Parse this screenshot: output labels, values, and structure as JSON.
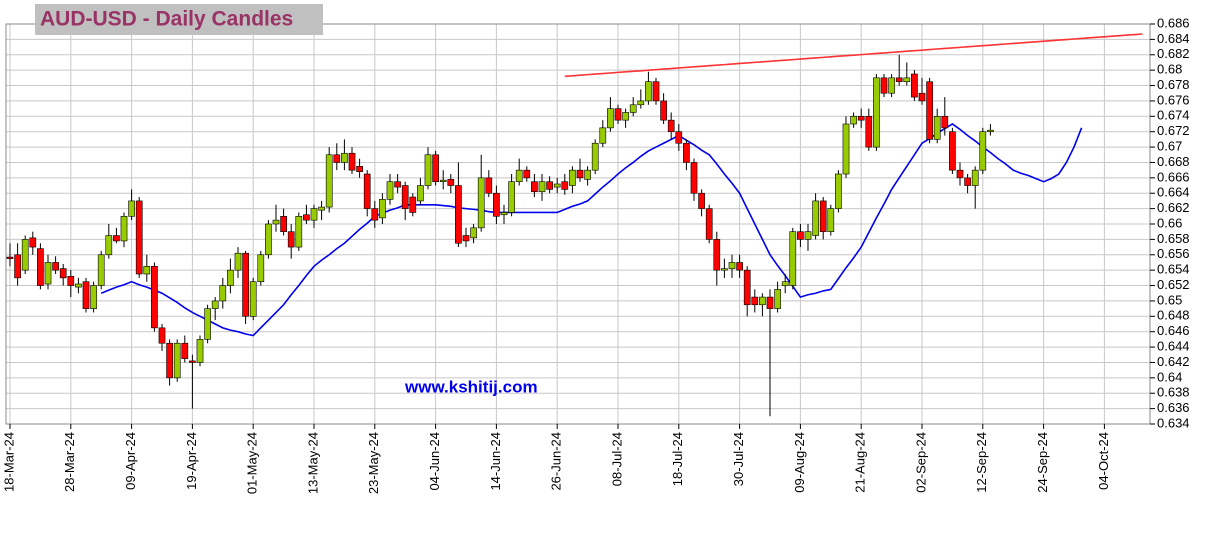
{
  "chart_data": {
    "type": "candlestick",
    "title": "AUD-USD - Daily Candles",
    "watermark": "www.kshitij.com",
    "up_color": "#99cc00",
    "down_color": "#ff0000",
    "grid": true,
    "ylim": [
      0.634,
      0.686
    ],
    "yticks": [
      0.634,
      0.636,
      0.638,
      0.64,
      0.642,
      0.644,
      0.646,
      0.648,
      0.65,
      0.652,
      0.654,
      0.656,
      0.658,
      0.66,
      0.662,
      0.664,
      0.666,
      0.668,
      0.67,
      0.672,
      0.674,
      0.676,
      0.678,
      0.68,
      0.682,
      0.684,
      0.686
    ],
    "categories": [
      "18-Mar-24",
      null,
      null,
      null,
      null,
      null,
      null,
      null,
      "28-Mar-24",
      null,
      null,
      null,
      null,
      null,
      null,
      null,
      "09-Apr-24",
      null,
      null,
      null,
      null,
      null,
      null,
      null,
      "19-Apr-24",
      null,
      null,
      null,
      null,
      null,
      null,
      null,
      "01-May-24",
      null,
      null,
      null,
      null,
      null,
      null,
      null,
      "13-May-24",
      null,
      null,
      null,
      null,
      null,
      null,
      null,
      "23-May-24",
      null,
      null,
      null,
      null,
      null,
      null,
      null,
      "04-Jun-24",
      null,
      null,
      null,
      null,
      null,
      null,
      null,
      "14-Jun-24",
      null,
      null,
      null,
      null,
      null,
      null,
      null,
      "26-Jun-24",
      null,
      null,
      null,
      null,
      null,
      null,
      null,
      "08-Jul-24",
      null,
      null,
      null,
      null,
      null,
      null,
      null,
      "18-Jul-24",
      null,
      null,
      null,
      null,
      null,
      null,
      null,
      "30-Jul-24",
      null,
      null,
      null,
      null,
      null,
      null,
      null,
      "09-Aug-24",
      null,
      null,
      null,
      null,
      null,
      null,
      null,
      "21-Aug-24",
      null,
      null,
      null,
      null,
      null,
      null,
      null,
      "02-Sep-24",
      null,
      null,
      null,
      null,
      null,
      null,
      null,
      "12-Sep-24",
      null,
      null,
      null,
      null,
      null,
      null,
      null,
      "24-Sep-24",
      null,
      null,
      null,
      null,
      null,
      null,
      null,
      "04-Oct-24",
      null,
      null,
      null,
      null,
      null
    ],
    "open": [
      0.6557,
      0.656,
      0.654,
      0.6582,
      0.6568,
      0.6522,
      0.655,
      0.6542,
      0.6532,
      0.6518,
      0.6525,
      0.649,
      0.652,
      0.656,
      0.6585,
      0.6578,
      0.661,
      0.663,
      0.6535,
      0.6545,
      0.6465,
      0.6445,
      0.64,
      0.6445,
      0.6422,
      0.642,
      0.645,
      0.649,
      0.65,
      0.652,
      0.654,
      0.6562,
      0.648,
      0.6525,
      0.656,
      0.66,
      0.661,
      0.659,
      0.657,
      0.6612,
      0.6605,
      0.6618,
      0.6622,
      0.669,
      0.668,
      0.6692,
      0.6675,
      0.6665,
      0.662,
      0.6608,
      0.6632,
      0.6655,
      0.665,
      0.6635,
      0.663,
      0.665,
      0.669,
      0.6655,
      0.6658,
      0.665,
      0.6585,
      0.6582,
      0.6595,
      0.666,
      0.664,
      0.6612,
      0.6615,
      0.6655,
      0.667,
      0.6655,
      0.6642,
      0.6655,
      0.6648,
      0.6655,
      0.665,
      0.667,
      0.6658,
      0.667,
      0.6705,
      0.6725,
      0.675,
      0.6735,
      0.6745,
      0.6755,
      0.676,
      0.6785,
      0.676,
      0.6735,
      0.672,
      0.6705,
      0.668,
      0.664,
      0.662,
      0.658,
      0.654,
      0.6542,
      0.655,
      0.654,
      0.6505,
      0.6495,
      0.6505,
      0.649,
      0.652,
      0.652,
      0.659,
      0.658,
      0.6585,
      0.663,
      0.659,
      0.662,
      0.6665,
      0.673,
      0.674,
      0.674,
      0.67,
      0.679,
      0.677,
      0.679,
      0.6785,
      0.6795,
      0.677,
      0.6785,
      0.671,
      0.674,
      0.672,
      0.667,
      0.666,
      0.665,
      0.667,
      0.672,
      null,
      null,
      null,
      null,
      null,
      null,
      null,
      null,
      null,
      null,
      null,
      null,
      null,
      null,
      null,
      null,
      null,
      null,
      null,
      null
    ],
    "high": [
      0.6575,
      0.6575,
      0.6585,
      0.659,
      0.6575,
      0.656,
      0.6558,
      0.6548,
      0.654,
      0.653,
      0.653,
      0.6525,
      0.6565,
      0.66,
      0.6595,
      0.6615,
      0.6645,
      0.6635,
      0.656,
      0.655,
      0.647,
      0.645,
      0.645,
      0.6455,
      0.643,
      0.6455,
      0.6495,
      0.6505,
      0.653,
      0.6555,
      0.657,
      0.6565,
      0.653,
      0.6565,
      0.6605,
      0.6625,
      0.662,
      0.66,
      0.6615,
      0.6625,
      0.6625,
      0.663,
      0.67,
      0.6705,
      0.671,
      0.67,
      0.6685,
      0.667,
      0.663,
      0.664,
      0.6665,
      0.6665,
      0.6655,
      0.664,
      0.666,
      0.67,
      0.6695,
      0.667,
      0.6665,
      0.668,
      0.6595,
      0.66,
      0.669,
      0.667,
      0.665,
      0.6625,
      0.6665,
      0.6685,
      0.6675,
      0.6665,
      0.6665,
      0.6662,
      0.666,
      0.6665,
      0.6675,
      0.6685,
      0.6675,
      0.671,
      0.6735,
      0.6765,
      0.6755,
      0.675,
      0.6765,
      0.6775,
      0.6798,
      0.679,
      0.677,
      0.6745,
      0.673,
      0.671,
      0.6685,
      0.6645,
      0.6625,
      0.659,
      0.6555,
      0.656,
      0.656,
      0.6545,
      0.6515,
      0.651,
      0.6515,
      0.6525,
      0.6535,
      0.6595,
      0.66,
      0.66,
      0.664,
      0.6635,
      0.6625,
      0.667,
      0.674,
      0.6745,
      0.675,
      0.675,
      0.6795,
      0.6795,
      0.6795,
      0.682,
      0.681,
      0.68,
      0.679,
      0.679,
      0.675,
      0.6765,
      0.6725,
      0.668,
      0.6665,
      0.6675,
      0.6725,
      0.673,
      null,
      null,
      null,
      null,
      null,
      null,
      null,
      null,
      null,
      null,
      null,
      null,
      null,
      null,
      null,
      null,
      null,
      null,
      null,
      null
    ],
    "low": [
      0.6545,
      0.652,
      0.6535,
      0.656,
      0.6515,
      0.6515,
      0.6535,
      0.652,
      0.6505,
      0.651,
      0.6485,
      0.6485,
      0.6515,
      0.6555,
      0.6575,
      0.657,
      0.6605,
      0.653,
      0.6525,
      0.646,
      0.6435,
      0.639,
      0.6395,
      0.642,
      0.636,
      0.6415,
      0.6445,
      0.6475,
      0.649,
      0.651,
      0.653,
      0.647,
      0.6475,
      0.652,
      0.6555,
      0.659,
      0.6585,
      0.6555,
      0.6565,
      0.66,
      0.6595,
      0.6605,
      0.6615,
      0.667,
      0.667,
      0.6665,
      0.666,
      0.661,
      0.6595,
      0.66,
      0.6625,
      0.664,
      0.6605,
      0.661,
      0.6625,
      0.6645,
      0.665,
      0.6645,
      0.664,
      0.657,
      0.657,
      0.6575,
      0.659,
      0.6635,
      0.66,
      0.66,
      0.661,
      0.665,
      0.6655,
      0.6635,
      0.663,
      0.664,
      0.664,
      0.6638,
      0.664,
      0.6655,
      0.665,
      0.6665,
      0.67,
      0.672,
      0.673,
      0.6725,
      0.674,
      0.675,
      0.6755,
      0.6755,
      0.673,
      0.671,
      0.6695,
      0.667,
      0.663,
      0.661,
      0.6575,
      0.652,
      0.653,
      0.653,
      0.653,
      0.648,
      0.6485,
      0.648,
      0.635,
      0.6485,
      0.651,
      0.6515,
      0.657,
      0.6565,
      0.658,
      0.658,
      0.6585,
      0.6615,
      0.666,
      0.6725,
      0.6725,
      0.6695,
      0.6695,
      0.6765,
      0.6765,
      0.678,
      0.678,
      0.676,
      0.6755,
      0.6705,
      0.6705,
      0.6715,
      0.6665,
      0.665,
      0.664,
      0.662,
      0.6665,
      0.6715,
      null,
      null,
      null,
      null,
      null,
      null,
      null,
      null,
      null,
      null,
      null,
      null,
      null,
      null,
      null,
      null,
      null,
      null,
      null,
      null
    ],
    "close": [
      0.6555,
      0.653,
      0.658,
      0.657,
      0.652,
      0.655,
      0.654,
      0.653,
      0.652,
      0.6522,
      0.649,
      0.652,
      0.656,
      0.6585,
      0.6578,
      0.661,
      0.663,
      0.6535,
      0.6545,
      0.6465,
      0.6445,
      0.64,
      0.6445,
      0.6425,
      0.642,
      0.645,
      0.649,
      0.65,
      0.652,
      0.654,
      0.6562,
      0.648,
      0.6525,
      0.656,
      0.66,
      0.6605,
      0.659,
      0.657,
      0.661,
      0.6605,
      0.662,
      0.6622,
      0.669,
      0.668,
      0.6692,
      0.667,
      0.6668,
      0.662,
      0.6605,
      0.6632,
      0.6655,
      0.6648,
      0.662,
      0.6615,
      0.665,
      0.669,
      0.6655,
      0.6657,
      0.665,
      0.6575,
      0.6578,
      0.6595,
      0.666,
      0.664,
      0.661,
      0.6615,
      0.6655,
      0.667,
      0.666,
      0.6642,
      0.6655,
      0.6645,
      0.6652,
      0.6645,
      0.667,
      0.666,
      0.667,
      0.6705,
      0.6725,
      0.675,
      0.6735,
      0.6745,
      0.6755,
      0.676,
      0.6785,
      0.676,
      0.6735,
      0.672,
      0.6705,
      0.668,
      0.664,
      0.662,
      0.658,
      0.654,
      0.6542,
      0.655,
      0.654,
      0.6495,
      0.6495,
      0.6505,
      0.649,
      0.6515,
      0.6525,
      0.659,
      0.658,
      0.659,
      0.663,
      0.659,
      0.662,
      0.6665,
      0.673,
      0.674,
      0.6735,
      0.67,
      0.679,
      0.677,
      0.679,
      0.6785,
      0.679,
      0.6765,
      0.676,
      0.671,
      0.674,
      0.6725,
      0.667,
      0.666,
      0.665,
      0.667,
      0.672,
      0.6722,
      null,
      null,
      null,
      null,
      null,
      null,
      null,
      null,
      null,
      null,
      null,
      null,
      null,
      null,
      null,
      null,
      null,
      null,
      null,
      null
    ],
    "lines": [
      {
        "color": "#0000ee",
        "values": [
          null,
          null,
          null,
          null,
          null,
          null,
          null,
          null,
          null,
          null,
          null,
          null,
          0.651,
          0.6514,
          0.6518,
          0.6521,
          0.6525,
          0.6521,
          0.6518,
          0.6514,
          0.651,
          0.6504,
          0.6498,
          0.6491,
          0.6485,
          0.648,
          0.6475,
          0.647,
          0.6465,
          0.6462,
          0.646,
          0.6457,
          0.6455,
          0.6465,
          0.6475,
          0.6485,
          0.6495,
          0.6508,
          0.652,
          0.6533,
          0.6545,
          0.6553,
          0.656,
          0.6568,
          0.6575,
          0.6584,
          0.6593,
          0.6601,
          0.661,
          0.6614,
          0.6618,
          0.6621,
          0.6625,
          0.6625,
          0.6625,
          0.6625,
          0.6625,
          0.6624,
          0.6623,
          0.6621,
          0.662,
          0.6619,
          0.6618,
          0.6616,
          0.6615,
          0.6615,
          0.6615,
          0.6615,
          0.6615,
          0.6615,
          0.6615,
          0.6615,
          0.6615,
          0.6619,
          0.6623,
          0.6626,
          0.663,
          0.6639,
          0.6648,
          0.6656,
          0.6665,
          0.6673,
          0.668,
          0.6688,
          0.6695,
          0.67,
          0.6705,
          0.671,
          0.6715,
          0.6709,
          0.6703,
          0.6696,
          0.669,
          0.6678,
          0.6665,
          0.6653,
          0.664,
          0.662,
          0.66,
          0.658,
          0.656,
          0.6546,
          0.6533,
          0.6519,
          0.6505,
          0.6508,
          0.651,
          0.6513,
          0.6515,
          0.6529,
          0.6543,
          0.6556,
          0.657,
          0.6589,
          0.6608,
          0.6626,
          0.6645,
          0.666,
          0.6675,
          0.669,
          0.6705,
          0.6711,
          0.6718,
          0.6724,
          0.673,
          0.6723,
          0.6715,
          0.6708,
          0.67,
          0.6693,
          0.6685,
          0.6678,
          0.667,
          0.6666,
          0.6663,
          0.6659,
          0.6655,
          0.6659,
          0.6665,
          0.668,
          0.67,
          0.6725,
          null,
          null,
          null,
          null,
          null,
          null,
          null,
          null
        ]
      },
      {
        "color": "#ff3333",
        "values": [
          null,
          null,
          null,
          null,
          null,
          null,
          null,
          null,
          null,
          null,
          null,
          null,
          null,
          null,
          null,
          null,
          null,
          null,
          null,
          null,
          null,
          null,
          null,
          null,
          null,
          null,
          null,
          null,
          null,
          null,
          null,
          null,
          null,
          null,
          null,
          null,
          null,
          null,
          null,
          null,
          null,
          null,
          null,
          null,
          null,
          null,
          null,
          null,
          null,
          null,
          null,
          null,
          null,
          null,
          null,
          null,
          null,
          null,
          null,
          null,
          null,
          null,
          null,
          null,
          null,
          null,
          null,
          null,
          null,
          null,
          null,
          null,
          null,
          0.6792,
          0.67927,
          0.67934,
          0.67942,
          0.67949,
          0.67956,
          0.67963,
          0.67971,
          0.67978,
          0.67985,
          0.67992,
          0.68,
          0.68007,
          0.68014,
          0.68021,
          0.68029,
          0.68036,
          0.68043,
          0.6805,
          0.68058,
          0.68065,
          0.68072,
          0.68079,
          0.68087,
          0.68094,
          0.68101,
          0.68108,
          0.68115,
          0.68123,
          0.6813,
          0.68137,
          0.68144,
          0.68152,
          0.68159,
          0.68166,
          0.68173,
          0.68181,
          0.68188,
          0.68195,
          0.68202,
          0.6821,
          0.68217,
          0.68224,
          0.68231,
          0.68239,
          0.68246,
          0.68253,
          0.6826,
          0.68268,
          0.68275,
          0.68282,
          0.68289,
          0.68296,
          0.68304,
          0.68311,
          0.68318,
          0.68325,
          0.68333,
          0.6834,
          0.68347,
          0.68354,
          0.68362,
          0.68369,
          0.68376,
          0.68383,
          0.68391,
          0.68398,
          0.68405,
          0.68412,
          0.6842,
          0.68427,
          0.68434,
          0.68441,
          0.68448,
          0.68456,
          0.68463,
          0.6847
        ]
      }
    ]
  }
}
